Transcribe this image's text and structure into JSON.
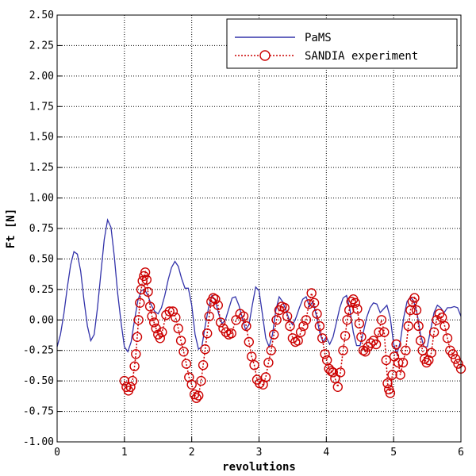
{
  "chart_data": {
    "type": "line",
    "xlabel": "revolutions",
    "ylabel": "Ft [N]",
    "xlim": [
      0,
      6
    ],
    "ylim": [
      -1.0,
      2.5
    ],
    "x_ticks": [
      "0",
      "1",
      "2",
      "3",
      "4",
      "5",
      "6"
    ],
    "y_ticks": [
      "-1.00",
      "-0.75",
      "-0.50",
      "-0.25",
      "0.00",
      "0.25",
      "0.50",
      "0.75",
      "1.00",
      "1.25",
      "1.50",
      "1.75",
      "2.00",
      "2.25",
      "2.50"
    ],
    "grid": true,
    "legend_position": "top-right",
    "series": [
      {
        "name": "PaMS",
        "style": "solid line",
        "color": "#3333aa",
        "points": [
          [
            0.0,
            -0.22
          ],
          [
            0.05,
            -0.12
          ],
          [
            0.1,
            0.05
          ],
          [
            0.15,
            0.26
          ],
          [
            0.2,
            0.45
          ],
          [
            0.25,
            0.56
          ],
          [
            0.3,
            0.54
          ],
          [
            0.35,
            0.4
          ],
          [
            0.4,
            0.16
          ],
          [
            0.45,
            -0.05
          ],
          [
            0.5,
            -0.17
          ],
          [
            0.55,
            -0.12
          ],
          [
            0.6,
            0.1
          ],
          [
            0.65,
            0.38
          ],
          [
            0.7,
            0.66
          ],
          [
            0.75,
            0.82
          ],
          [
            0.8,
            0.76
          ],
          [
            0.85,
            0.52
          ],
          [
            0.9,
            0.22
          ],
          [
            0.95,
            -0.02
          ],
          [
            1.0,
            -0.22
          ],
          [
            1.05,
            -0.26
          ],
          [
            1.1,
            -0.18
          ],
          [
            1.15,
            0.0
          ],
          [
            1.2,
            0.16
          ],
          [
            1.25,
            0.24
          ],
          [
            1.3,
            0.25
          ],
          [
            1.35,
            0.2
          ],
          [
            1.4,
            0.12
          ],
          [
            1.45,
            0.07
          ],
          [
            1.5,
            0.05
          ],
          [
            1.55,
            0.1
          ],
          [
            1.6,
            0.2
          ],
          [
            1.65,
            0.33
          ],
          [
            1.7,
            0.43
          ],
          [
            1.75,
            0.48
          ],
          [
            1.8,
            0.44
          ],
          [
            1.85,
            0.34
          ],
          [
            1.9,
            0.26
          ],
          [
            1.95,
            0.26
          ],
          [
            2.0,
            0.12
          ],
          [
            2.05,
            -0.12
          ],
          [
            2.1,
            -0.24
          ],
          [
            2.15,
            -0.22
          ],
          [
            2.2,
            -0.05
          ],
          [
            2.25,
            0.1
          ],
          [
            2.3,
            0.2
          ],
          [
            2.35,
            0.16
          ],
          [
            2.4,
            0.05
          ],
          [
            2.45,
            -0.03
          ],
          [
            2.5,
            0.0
          ],
          [
            2.55,
            0.09
          ],
          [
            2.6,
            0.18
          ],
          [
            2.65,
            0.19
          ],
          [
            2.7,
            0.12
          ],
          [
            2.75,
            0.02
          ],
          [
            2.8,
            -0.08
          ],
          [
            2.85,
            -0.04
          ],
          [
            2.9,
            0.12
          ],
          [
            2.95,
            0.27
          ],
          [
            3.0,
            0.24
          ],
          [
            3.05,
            0.05
          ],
          [
            3.1,
            -0.15
          ],
          [
            3.15,
            -0.22
          ],
          [
            3.2,
            -0.12
          ],
          [
            3.25,
            0.08
          ],
          [
            3.3,
            0.19
          ],
          [
            3.35,
            0.15
          ],
          [
            3.4,
            0.08
          ],
          [
            3.45,
            0.0
          ],
          [
            3.5,
            -0.04
          ],
          [
            3.55,
            0.02
          ],
          [
            3.6,
            0.1
          ],
          [
            3.65,
            0.17
          ],
          [
            3.7,
            0.19
          ],
          [
            3.75,
            0.11
          ],
          [
            3.8,
            0.15
          ],
          [
            3.85,
            0.04
          ],
          [
            3.9,
            -0.1
          ],
          [
            3.95,
            -0.18
          ],
          [
            4.0,
            -0.14
          ],
          [
            4.05,
            -0.2
          ],
          [
            4.1,
            -0.14
          ],
          [
            4.15,
            -0.02
          ],
          [
            4.2,
            0.1
          ],
          [
            4.25,
            0.18
          ],
          [
            4.3,
            0.2
          ],
          [
            4.35,
            0.09
          ],
          [
            4.4,
            -0.1
          ],
          [
            4.45,
            -0.21
          ],
          [
            4.5,
            -0.21
          ],
          [
            4.55,
            -0.1
          ],
          [
            4.6,
            0.02
          ],
          [
            4.65,
            0.1
          ],
          [
            4.7,
            0.14
          ],
          [
            4.75,
            0.13
          ],
          [
            4.8,
            0.06
          ],
          [
            4.85,
            0.09
          ],
          [
            4.9,
            0.12
          ],
          [
            4.95,
            0.02
          ],
          [
            5.0,
            -0.2
          ],
          [
            5.05,
            -0.28
          ],
          [
            5.1,
            -0.18
          ],
          [
            5.15,
            0.02
          ],
          [
            5.2,
            0.15
          ],
          [
            5.25,
            0.19
          ],
          [
            5.3,
            0.15
          ],
          [
            5.35,
            0.05
          ],
          [
            5.4,
            -0.12
          ],
          [
            5.45,
            -0.22
          ],
          [
            5.5,
            -0.22
          ],
          [
            5.55,
            -0.08
          ],
          [
            5.6,
            0.06
          ],
          [
            5.65,
            0.12
          ],
          [
            5.7,
            0.1
          ],
          [
            5.75,
            0.06
          ],
          [
            5.8,
            0.1
          ],
          [
            5.85,
            0.1
          ],
          [
            5.9,
            0.11
          ],
          [
            5.95,
            0.1
          ],
          [
            6.0,
            0.03
          ]
        ]
      },
      {
        "name": "SANDIA experiment",
        "style": "dotted line with open circles",
        "color": "#cc0000",
        "points": [
          [
            1.0,
            -0.5
          ],
          [
            1.03,
            -0.55
          ],
          [
            1.06,
            -0.58
          ],
          [
            1.09,
            -0.55
          ],
          [
            1.12,
            -0.5
          ],
          [
            1.15,
            -0.38
          ],
          [
            1.17,
            -0.28
          ],
          [
            1.19,
            -0.14
          ],
          [
            1.21,
            0.0
          ],
          [
            1.23,
            0.14
          ],
          [
            1.25,
            0.25
          ],
          [
            1.27,
            0.32
          ],
          [
            1.29,
            0.36
          ],
          [
            1.31,
            0.39
          ],
          [
            1.33,
            0.33
          ],
          [
            1.35,
            0.23
          ],
          [
            1.38,
            0.11
          ],
          [
            1.41,
            0.03
          ],
          [
            1.44,
            -0.02
          ],
          [
            1.47,
            -0.07
          ],
          [
            1.5,
            -0.12
          ],
          [
            1.53,
            -0.15
          ],
          [
            1.56,
            -0.1
          ],
          [
            1.62,
            0.04
          ],
          [
            1.67,
            0.07
          ],
          [
            1.72,
            0.07
          ],
          [
            1.76,
            0.02
          ],
          [
            1.8,
            -0.07
          ],
          [
            1.84,
            -0.17
          ],
          [
            1.88,
            -0.26
          ],
          [
            1.92,
            -0.36
          ],
          [
            1.96,
            -0.47
          ],
          [
            2.0,
            -0.53
          ],
          [
            2.04,
            -0.61
          ],
          [
            2.07,
            -0.64
          ],
          [
            2.1,
            -0.62
          ],
          [
            2.14,
            -0.5
          ],
          [
            2.17,
            -0.37
          ],
          [
            2.2,
            -0.24
          ],
          [
            2.23,
            -0.11
          ],
          [
            2.26,
            0.03
          ],
          [
            2.29,
            0.15
          ],
          [
            2.32,
            0.18
          ],
          [
            2.35,
            0.17
          ],
          [
            2.39,
            0.12
          ],
          [
            2.43,
            -0.02
          ],
          [
            2.47,
            -0.07
          ],
          [
            2.51,
            -0.1
          ],
          [
            2.55,
            -0.12
          ],
          [
            2.59,
            -0.11
          ],
          [
            2.66,
            0.0
          ],
          [
            2.72,
            0.05
          ],
          [
            2.77,
            0.03
          ],
          [
            2.81,
            -0.05
          ],
          [
            2.85,
            -0.18
          ],
          [
            2.89,
            -0.3
          ],
          [
            2.93,
            -0.37
          ],
          [
            2.97,
            -0.49
          ],
          [
            3.01,
            -0.52
          ],
          [
            3.06,
            -0.53
          ],
          [
            3.1,
            -0.47
          ],
          [
            3.14,
            -0.35
          ],
          [
            3.18,
            -0.25
          ],
          [
            3.22,
            -0.12
          ],
          [
            3.26,
            0.0
          ],
          [
            3.3,
            0.08
          ],
          [
            3.34,
            0.11
          ],
          [
            3.38,
            0.1
          ],
          [
            3.42,
            0.03
          ],
          [
            3.46,
            -0.05
          ],
          [
            3.5,
            -0.15
          ],
          [
            3.54,
            -0.18
          ],
          [
            3.58,
            -0.17
          ],
          [
            3.62,
            -0.1
          ],
          [
            3.66,
            -0.05
          ],
          [
            3.7,
            0.0
          ],
          [
            3.74,
            0.13
          ],
          [
            3.78,
            0.22
          ],
          [
            3.82,
            0.14
          ],
          [
            3.86,
            0.05
          ],
          [
            3.9,
            -0.05
          ],
          [
            3.94,
            -0.15
          ],
          [
            3.98,
            -0.28
          ],
          [
            4.01,
            -0.33
          ],
          [
            4.04,
            -0.4
          ],
          [
            4.07,
            -0.42
          ],
          [
            4.1,
            -0.43
          ],
          [
            4.13,
            -0.48
          ],
          [
            4.17,
            -0.55
          ],
          [
            4.21,
            -0.43
          ],
          [
            4.25,
            -0.25
          ],
          [
            4.28,
            -0.13
          ],
          [
            4.31,
            0.0
          ],
          [
            4.34,
            0.08
          ],
          [
            4.37,
            0.15
          ],
          [
            4.4,
            0.17
          ],
          [
            4.43,
            0.14
          ],
          [
            4.46,
            0.09
          ],
          [
            4.49,
            -0.03
          ],
          [
            4.52,
            -0.14
          ],
          [
            4.55,
            -0.25
          ],
          [
            4.58,
            -0.26
          ],
          [
            4.62,
            -0.22
          ],
          [
            4.66,
            -0.19
          ],
          [
            4.7,
            -0.17
          ],
          [
            4.74,
            -0.2
          ],
          [
            4.78,
            -0.1
          ],
          [
            4.82,
            0.0
          ],
          [
            4.86,
            -0.1
          ],
          [
            4.89,
            -0.33
          ],
          [
            4.91,
            -0.52
          ],
          [
            4.93,
            -0.57
          ],
          [
            4.95,
            -0.6
          ],
          [
            4.98,
            -0.45
          ],
          [
            5.01,
            -0.3
          ],
          [
            5.04,
            -0.2
          ],
          [
            5.07,
            -0.35
          ],
          [
            5.1,
            -0.45
          ],
          [
            5.14,
            -0.35
          ],
          [
            5.18,
            -0.25
          ],
          [
            5.22,
            -0.05
          ],
          [
            5.25,
            0.08
          ],
          [
            5.28,
            0.15
          ],
          [
            5.31,
            0.18
          ],
          [
            5.34,
            0.08
          ],
          [
            5.37,
            -0.05
          ],
          [
            5.4,
            -0.17
          ],
          [
            5.43,
            -0.25
          ],
          [
            5.46,
            -0.32
          ],
          [
            5.49,
            -0.35
          ],
          [
            5.52,
            -0.33
          ],
          [
            5.56,
            -0.27
          ],
          [
            5.6,
            -0.1
          ],
          [
            5.64,
            0.0
          ],
          [
            5.68,
            0.05
          ],
          [
            5.72,
            0.02
          ],
          [
            5.76,
            -0.05
          ],
          [
            5.8,
            -0.15
          ],
          [
            5.84,
            -0.25
          ],
          [
            5.88,
            -0.28
          ],
          [
            5.92,
            -0.32
          ],
          [
            5.96,
            -0.36
          ],
          [
            6.0,
            -0.4
          ]
        ]
      }
    ]
  }
}
